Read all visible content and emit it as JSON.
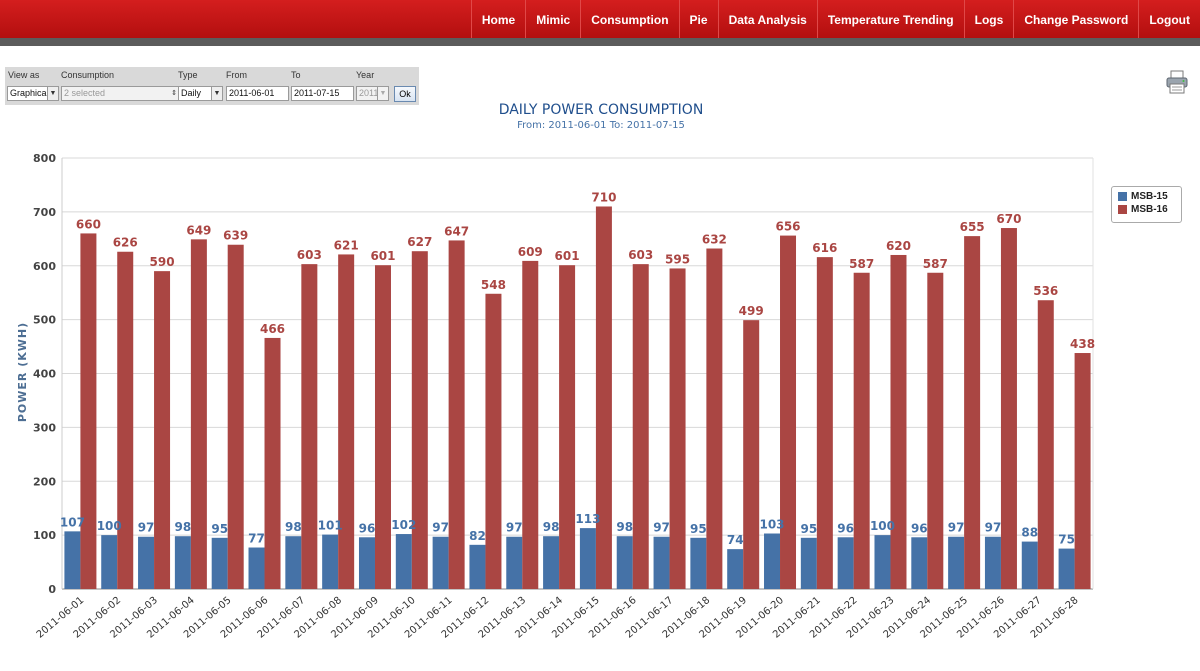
{
  "nav": {
    "items": [
      "Home",
      "Mimic",
      "Consumption",
      "Pie",
      "Data Analysis",
      "Temperature Trending",
      "Logs",
      "Change Password",
      "Logout"
    ]
  },
  "form": {
    "view_as": {
      "label": "View as",
      "value": "Graphical"
    },
    "consumption": {
      "label": "Consumption",
      "value": "2 selected"
    },
    "type": {
      "label": "Type",
      "value": "Daily"
    },
    "from": {
      "label": "From",
      "value": "2011-06-01"
    },
    "to": {
      "label": "To",
      "value": "2011-07-15"
    },
    "year": {
      "label": "Year",
      "value": "2011"
    },
    "ok_label": "Ok"
  },
  "toolbar": {
    "print_icon": "printer-icon"
  },
  "colors": {
    "brand": "#c81414",
    "series1": "#4572a7",
    "series2": "#aa4643",
    "title": "#1f4e8c"
  },
  "chart_data": {
    "type": "bar",
    "title": "DAILY POWER CONSUMPTION",
    "subtitle": "From: 2011-06-01 To: 2011-07-15",
    "xlabel": "",
    "ylabel": "POWER (KWH)",
    "ylim": [
      0,
      800
    ],
    "yticks": [
      0,
      100,
      200,
      300,
      400,
      500,
      600,
      700,
      800
    ],
    "grid": true,
    "legend": "top-right",
    "categories": [
      "2011-06-01",
      "2011-06-02",
      "2011-06-03",
      "2011-06-04",
      "2011-06-05",
      "2011-06-06",
      "2011-06-07",
      "2011-06-08",
      "2011-06-09",
      "2011-06-10",
      "2011-06-11",
      "2011-06-12",
      "2011-06-13",
      "2011-06-14",
      "2011-06-15",
      "2011-06-16",
      "2011-06-17",
      "2011-06-18",
      "2011-06-19",
      "2011-06-20",
      "2011-06-21",
      "2011-06-22",
      "2011-06-23",
      "2011-06-24",
      "2011-06-25",
      "2011-06-26",
      "2011-06-27",
      "2011-06-28"
    ],
    "series": [
      {
        "name": "MSB-15",
        "color": "#4572a7",
        "values": [
          107,
          100,
          97,
          98,
          95,
          77,
          98,
          101,
          96,
          102,
          97,
          82,
          97,
          98,
          113,
          98,
          97,
          95,
          74,
          103,
          95,
          96,
          100,
          96,
          97,
          97,
          88,
          75
        ]
      },
      {
        "name": "MSB-16",
        "color": "#aa4643",
        "values": [
          660,
          626,
          590,
          649,
          639,
          466,
          603,
          621,
          601,
          627,
          647,
          548,
          609,
          601,
          710,
          603,
          595,
          632,
          499,
          656,
          616,
          587,
          620,
          587,
          655,
          670,
          536,
          438
        ]
      }
    ]
  }
}
